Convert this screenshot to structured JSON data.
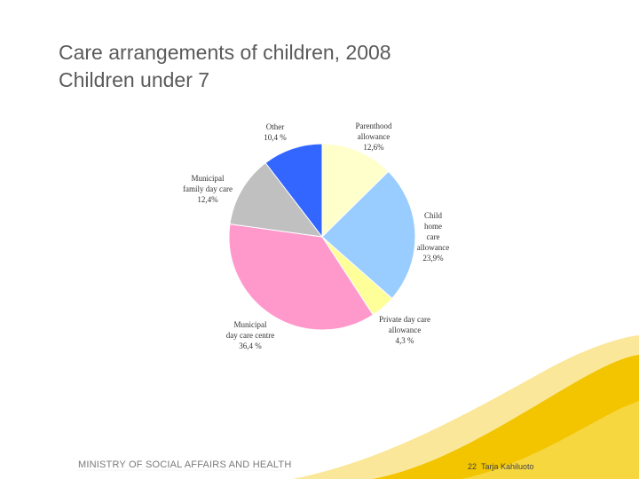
{
  "slide": {
    "title_line1": "Care arrangements of children, 2008",
    "title_line2": "Children under 7"
  },
  "chart_data": {
    "type": "pie",
    "slices": [
      {
        "label_lines": [
          "Parenthood",
          "allowance",
          "12,6%"
        ],
        "value": 12.6,
        "color": "#FFFFCC"
      },
      {
        "label_lines": [
          "Child",
          "home",
          "care",
          "allowance",
          "23,9%"
        ],
        "value": 23.9,
        "color": "#99CCFF"
      },
      {
        "label_lines": [
          "Private day care",
          "allowance",
          "4,3 %"
        ],
        "value": 4.3,
        "color": "#FFFF99"
      },
      {
        "label_lines": [
          "Municipal",
          "day care centre",
          "36,4 %"
        ],
        "value": 36.4,
        "color": "#FF99CC"
      },
      {
        "label_lines": [
          "Municipal",
          "family day care",
          "12,4%"
        ],
        "value": 12.4,
        "color": "#C0C0C0"
      },
      {
        "label_lines": [
          "Other",
          "10,4 %"
        ],
        "value": 10.4,
        "color": "#3366FF"
      }
    ]
  },
  "footer": {
    "ministry": "MINISTRY OF SOCIAL AFFAIRS AND HEALTH",
    "page_number": "22",
    "author": "Tarja Kahiluoto"
  },
  "colors": {
    "title": "#5a5a5a",
    "footer_wave_yellow": "#F2C500",
    "footer_wave_light": "#FBE79A"
  }
}
